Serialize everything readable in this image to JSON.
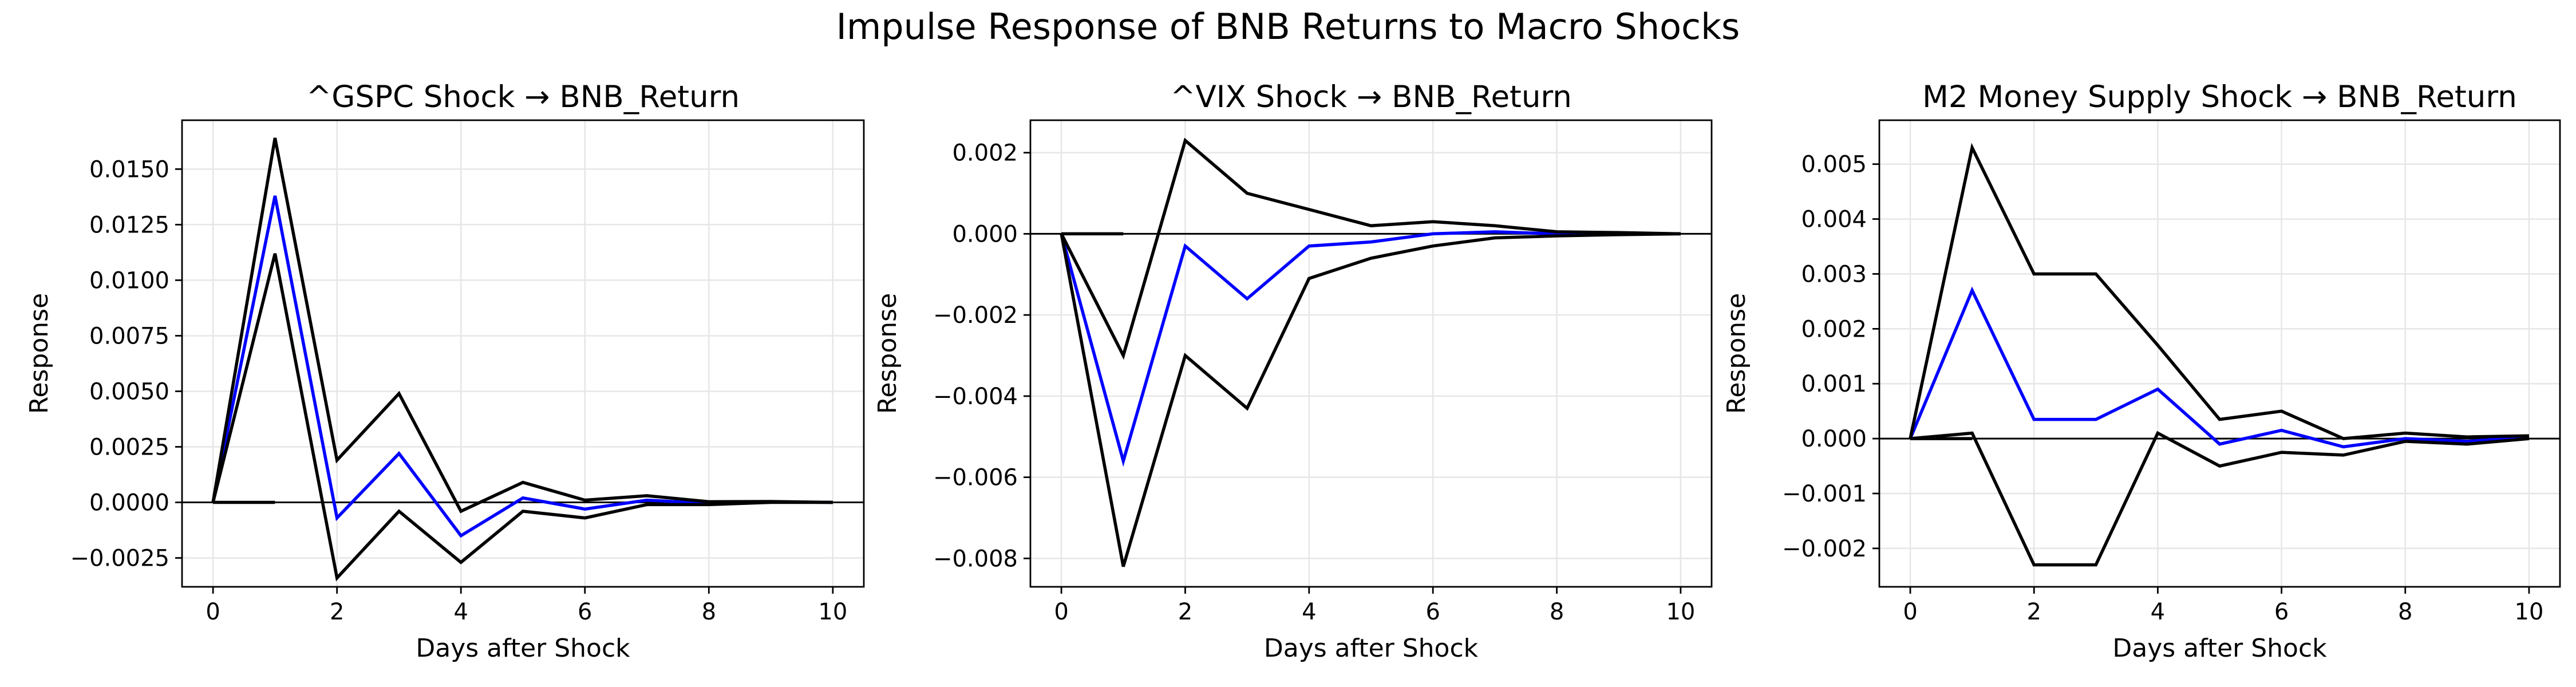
{
  "figure": {
    "suptitle": "Impulse Response of BNB Returns to Macro Shocks"
  },
  "colors": {
    "response": "#0000ff",
    "band": "#000000",
    "grid": "#e6e6e6",
    "zero_line": "#000000"
  },
  "chart_data": [
    {
      "type": "line",
      "title": "^GSPC Shock → BNB_Return",
      "xlabel": "Days after Shock",
      "ylabel": "Response",
      "xlim": [
        -0.5,
        10.5
      ],
      "ylim": [
        -0.0038,
        0.0172
      ],
      "xticks": [
        0,
        2,
        4,
        6,
        8,
        10
      ],
      "xtick_labels": [
        "0",
        "2",
        "4",
        "6",
        "8",
        "10"
      ],
      "yticks": [
        -0.0025,
        0.0,
        0.0025,
        0.005,
        0.0075,
        0.01,
        0.0125,
        0.015
      ],
      "ytick_labels": [
        "−0.0025",
        "0.0000",
        "0.0025",
        "0.0050",
        "0.0075",
        "0.0100",
        "0.0125",
        "0.0150"
      ],
      "grid": true,
      "zero_line": true,
      "x": [
        0,
        1,
        2,
        3,
        4,
        5,
        6,
        7,
        8,
        9,
        10
      ],
      "series": [
        {
          "role": "response",
          "color": "#0000ff",
          "values": [
            0.0,
            0.0138,
            -0.0007,
            0.0022,
            -0.0015,
            0.0002,
            -0.0003,
            0.0001,
            -5e-05,
            2e-05,
            0.0
          ]
        },
        {
          "role": "upper_band",
          "color": "#000000",
          "values": [
            0.0,
            0.0164,
            0.0019,
            0.0049,
            -0.0004,
            0.0009,
            0.0001,
            0.0003,
            3e-05,
            4e-05,
            0.0
          ]
        },
        {
          "role": "lower_band",
          "color": "#000000",
          "values": [
            0.0,
            0.0112,
            -0.0034,
            -0.0004,
            -0.0027,
            -0.0004,
            -0.0007,
            -0.0001,
            -0.0001,
            0.0,
            0.0
          ]
        },
        {
          "role": "lower_band_start",
          "color": "#000000",
          "x": [
            0,
            1
          ],
          "values": [
            0.0,
            0.0
          ]
        }
      ]
    },
    {
      "type": "line",
      "title": "^VIX Shock → BNB_Return",
      "xlabel": "Days after Shock",
      "ylabel": "Response",
      "xlim": [
        -0.5,
        10.5
      ],
      "ylim": [
        -0.0087,
        0.0028
      ],
      "xticks": [
        0,
        2,
        4,
        6,
        8,
        10
      ],
      "xtick_labels": [
        "0",
        "2",
        "4",
        "6",
        "8",
        "10"
      ],
      "yticks": [
        -0.008,
        -0.006,
        -0.004,
        -0.002,
        0.0,
        0.002
      ],
      "ytick_labels": [
        "−0.008",
        "−0.006",
        "−0.004",
        "−0.002",
        "0.000",
        "0.002"
      ],
      "grid": true,
      "zero_line": true,
      "x": [
        0,
        1,
        2,
        3,
        4,
        5,
        6,
        7,
        8,
        9,
        10
      ],
      "series": [
        {
          "role": "response",
          "color": "#0000ff",
          "values": [
            0.0,
            -0.0056,
            -0.0003,
            -0.0016,
            -0.0003,
            -0.0002,
            0.0,
            5e-05,
            0.0,
            0.0,
            0.0
          ]
        },
        {
          "role": "upper_band",
          "color": "#000000",
          "values": [
            0.0,
            -0.003,
            0.0023,
            0.001,
            0.0006,
            0.0002,
            0.0003,
            0.0002,
            5e-05,
            3e-05,
            0.0
          ]
        },
        {
          "role": "lower_band",
          "color": "#000000",
          "values": [
            0.0,
            -0.0082,
            -0.003,
            -0.0043,
            -0.0011,
            -0.0006,
            -0.0003,
            -0.0001,
            -5e-05,
            -2e-05,
            0.0
          ]
        },
        {
          "role": "lower_band_start",
          "color": "#000000",
          "x": [
            0,
            1
          ],
          "values": [
            0.0,
            0.0
          ]
        }
      ]
    },
    {
      "type": "line",
      "title": "M2 Money Supply Shock → BNB_Return",
      "xlabel": "Days after Shock",
      "ylabel": "Response",
      "xlim": [
        -0.5,
        10.5
      ],
      "ylim": [
        -0.0027,
        0.0058
      ],
      "xticks": [
        0,
        2,
        4,
        6,
        8,
        10
      ],
      "xtick_labels": [
        "0",
        "2",
        "4",
        "6",
        "8",
        "10"
      ],
      "yticks": [
        -0.002,
        -0.001,
        0.0,
        0.001,
        0.002,
        0.003,
        0.004,
        0.005
      ],
      "ytick_labels": [
        "−0.002",
        "−0.001",
        "0.000",
        "0.001",
        "0.002",
        "0.003",
        "0.004",
        "0.005"
      ],
      "grid": true,
      "zero_line": true,
      "x": [
        0,
        1,
        2,
        3,
        4,
        5,
        6,
        7,
        8,
        9,
        10
      ],
      "series": [
        {
          "role": "response",
          "color": "#0000ff",
          "values": [
            0.0,
            0.0027,
            0.00035,
            0.00035,
            0.0009,
            -0.0001,
            0.00015,
            -0.00015,
            0.0,
            -5e-05,
            3e-05
          ]
        },
        {
          "role": "upper_band",
          "color": "#000000",
          "values": [
            0.0,
            0.0053,
            0.003,
            0.003,
            0.0017,
            0.00035,
            0.0005,
            0.0,
            0.0001,
            3e-05,
            5e-05
          ]
        },
        {
          "role": "lower_band",
          "color": "#000000",
          "values": [
            0.0,
            0.0001,
            -0.0023,
            -0.0023,
            0.0001,
            -0.0005,
            -0.00025,
            -0.0003,
            -5e-05,
            -0.0001,
            0.0
          ]
        },
        {
          "role": "lower_band_start",
          "color": "#000000",
          "x": [
            0,
            1
          ],
          "values": [
            0.0,
            0.0
          ]
        }
      ]
    }
  ]
}
